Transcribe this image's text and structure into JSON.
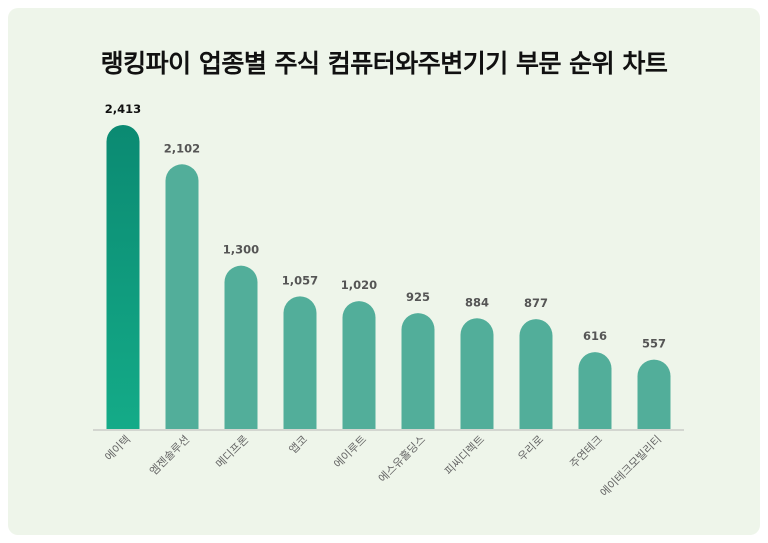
{
  "colors": {
    "background": "#eef5ea",
    "bar": "#52ae9a",
    "bar_top_gradient_start": "#0b8a72",
    "bar_top_gradient_end": "#14ab88",
    "baseline": "#d3d6d0",
    "value_text": "#555555",
    "label_text": "#666666"
  },
  "chart_data": {
    "type": "bar",
    "title": "랭킹파이 업종별 주식 컴퓨터와주변기기 부문 순위 차트",
    "xlabel": "",
    "ylabel": "",
    "categories": [
      "에이텍",
      "엠젠솔루션",
      "메디프론",
      "앱코",
      "에이루트",
      "에스유홀딩스",
      "피씨디렉트",
      "우리로",
      "주연테크",
      "에이테크모빌리티"
    ],
    "values": [
      2413,
      2102,
      1300,
      1057,
      1020,
      925,
      884,
      877,
      616,
      557
    ],
    "value_labels": [
      "2,413",
      "2,102",
      "1,300",
      "1,057",
      "1,020",
      "925",
      "884",
      "877",
      "616",
      "557"
    ],
    "ylim": [
      0,
      2413
    ],
    "grid": false,
    "legend": "none"
  }
}
